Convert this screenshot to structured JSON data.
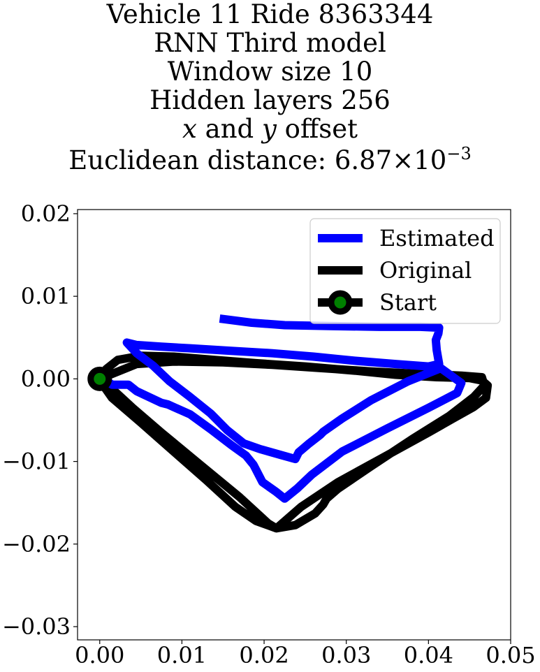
{
  "chart_data": {
    "type": "line",
    "title_lines": [
      "Vehicle 11 Ride 8363344",
      "RNN Third model",
      "Window size 10",
      "Hidden layers 256"
    ],
    "offset_line": {
      "x": "x",
      "and": " and ",
      "y": "y",
      "rest": " offset"
    },
    "distance_line": {
      "prefix": "Euclidean distance: 6.87",
      "times": "×",
      "base": "10",
      "exponent": "−3"
    },
    "xlim": [
      -0.0027,
      0.05
    ],
    "ylim": [
      -0.0316,
      0.0205
    ],
    "xticks": [
      0.0,
      0.01,
      0.02,
      0.03,
      0.04,
      0.05
    ],
    "yticks": [
      0.02,
      0.01,
      0.0,
      -0.01,
      -0.02,
      -0.03
    ],
    "xtick_labels": [
      "0.00",
      "0.01",
      "0.02",
      "0.03",
      "0.04",
      "0.05"
    ],
    "ytick_labels": [
      "0.02",
      "0.01",
      "0.00",
      "−0.01",
      "−0.02",
      "−0.03"
    ],
    "grid": false,
    "legend_position": "top-right",
    "colors": {
      "estimated": "#0000ff",
      "original": "#000000",
      "start_marker": "#008000"
    },
    "series": [
      {
        "name": "Estimated",
        "x": [
          0.0146,
          0.0185,
          0.0225,
          0.028,
          0.034,
          0.039,
          0.0413,
          0.0412,
          0.0409,
          0.041,
          0.0413,
          0.04,
          0.036,
          0.031,
          0.026,
          0.021,
          0.016,
          0.011,
          0.0075,
          0.0045,
          0.0033,
          0.0045,
          0.0065,
          0.0085,
          0.011,
          0.0135,
          0.0155,
          0.0175,
          0.0195,
          0.022,
          0.0238,
          0.0242,
          0.0255,
          0.0268,
          0.0272,
          0.0295,
          0.033,
          0.0375,
          0.0415,
          0.044,
          0.0435,
          0.04,
          0.035,
          0.0295,
          0.0258,
          0.024,
          0.0225,
          0.0215,
          0.0198,
          0.0187,
          0.0178,
          0.016,
          0.0135,
          0.011,
          0.0083,
          0.0075,
          0.0045,
          0.0035,
          0.0015,
          0.0005,
          0.0
        ],
        "y": [
          0.0073,
          0.0068,
          0.0065,
          0.0064,
          0.0063,
          0.0063,
          0.0062,
          0.0055,
          0.0047,
          0.0035,
          0.0018,
          0.0015,
          0.0018,
          0.0022,
          0.0027,
          0.0031,
          0.0034,
          0.0037,
          0.0039,
          0.0041,
          0.0044,
          0.0031,
          0.0016,
          -0.0003,
          -0.0022,
          -0.0042,
          -0.0062,
          -0.0078,
          -0.0085,
          -0.0092,
          -0.0097,
          -0.0089,
          -0.0078,
          -0.0068,
          -0.0064,
          -0.0048,
          -0.0026,
          -0.0003,
          0.0013,
          -0.0005,
          -0.0017,
          -0.0035,
          -0.006,
          -0.0088,
          -0.0116,
          -0.0133,
          -0.0145,
          -0.0137,
          -0.0125,
          -0.0104,
          -0.0093,
          -0.008,
          -0.0061,
          -0.0043,
          -0.0031,
          -0.0029,
          -0.0015,
          -0.0007,
          -0.0007,
          0.0,
          0.0
        ]
      },
      {
        "name": "Original",
        "x": [
          0.0,
          0.0008,
          0.0022,
          0.005,
          0.009,
          0.014,
          0.019,
          0.025,
          0.031,
          0.036,
          0.041,
          0.045,
          0.0465,
          0.0472,
          0.047,
          0.0455,
          0.043,
          0.04,
          0.0345,
          0.029,
          0.0245,
          0.0222,
          0.0215,
          0.0205,
          0.017,
          0.012,
          0.0075,
          0.004,
          0.0015,
          0.0003,
          0.0,
          0.0015,
          0.005,
          0.009,
          0.013,
          0.0165,
          0.019,
          0.0215,
          0.0238,
          0.0262,
          0.0272,
          0.0276,
          0.029,
          0.033,
          0.038,
          0.0425,
          0.0455,
          0.0468,
          0.0465,
          0.044,
          0.039,
          0.033,
          0.027,
          0.021,
          0.015,
          0.009,
          0.0045,
          0.002,
          0.0005,
          0.0
        ],
        "y": [
          0.0,
          0.0012,
          0.0023,
          0.0028,
          0.0027,
          0.0023,
          0.0019,
          0.0015,
          0.001,
          0.0005,
          0.0002,
          0.0001,
          -0.0002,
          -0.0008,
          -0.0023,
          -0.0034,
          -0.0048,
          -0.0065,
          -0.0095,
          -0.0125,
          -0.0155,
          -0.0175,
          -0.0181,
          -0.0175,
          -0.0143,
          -0.0102,
          -0.0065,
          -0.0035,
          -0.0012,
          -0.0003,
          -0.0002,
          -0.0023,
          -0.0053,
          -0.0088,
          -0.0123,
          -0.0155,
          -0.0172,
          -0.0181,
          -0.0177,
          -0.0163,
          -0.0152,
          -0.0145,
          -0.0133,
          -0.0106,
          -0.0073,
          -0.0045,
          -0.0022,
          -0.0008,
          0.0002,
          0.0004,
          0.0006,
          0.0009,
          0.0013,
          0.0017,
          0.002,
          0.0021,
          0.0018,
          0.0008,
          0.0002,
          0.0
        ]
      }
    ],
    "start_point": {
      "name": "Start",
      "x": 0.0,
      "y": 0.0
    }
  }
}
